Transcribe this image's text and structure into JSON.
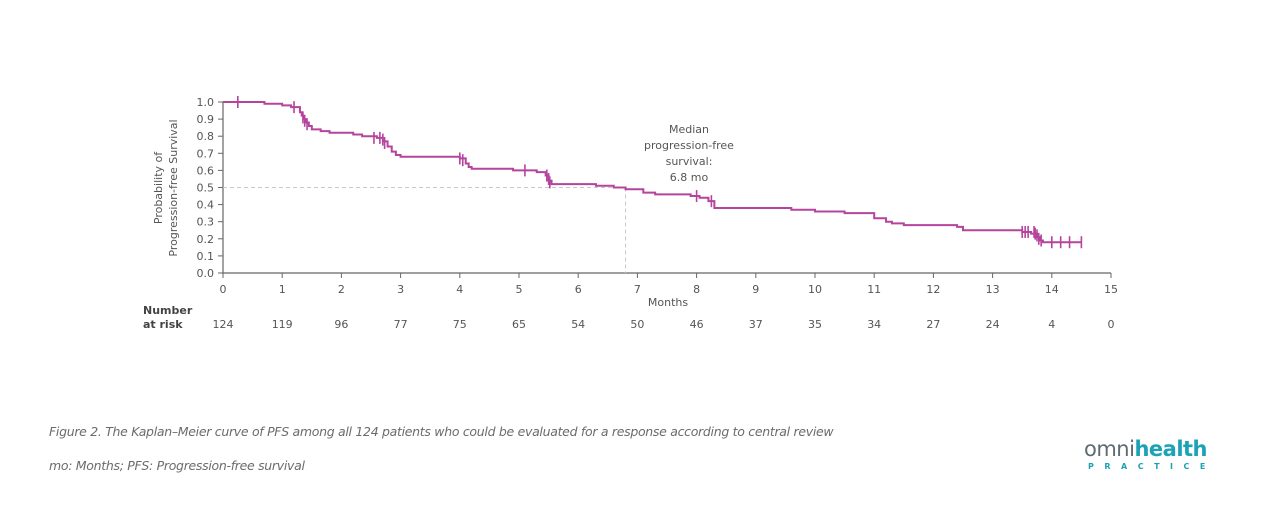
{
  "chart_data": {
    "type": "line",
    "subtype": "kaplan-meier-step",
    "title": "",
    "xlabel": "Months",
    "ylabel_lines": [
      "Probability of",
      "Progression-free Survival"
    ],
    "xlim": [
      0,
      15
    ],
    "ylim": [
      0,
      1.0
    ],
    "xticks": [
      0,
      1,
      2,
      3,
      4,
      5,
      6,
      7,
      8,
      9,
      10,
      11,
      12,
      13,
      14,
      15
    ],
    "xtick_labels": [
      "0",
      "1",
      "2",
      "3",
      "4",
      "5",
      "6",
      "7",
      "8",
      "9",
      "10",
      "11",
      "12",
      "13",
      "14",
      "15"
    ],
    "yticks": [
      0.0,
      0.1,
      0.2,
      0.3,
      0.4,
      0.5,
      0.6,
      0.7,
      0.8,
      0.9,
      1.0
    ],
    "ytick_labels": [
      "0.0",
      "0.1",
      "0.2",
      "0.3",
      "0.4",
      "0.5",
      "0.6",
      "0.7",
      "0.8",
      "0.9",
      "1.0"
    ],
    "grid": false,
    "series": [
      {
        "name": "PFS",
        "color": "#b5449c",
        "steps": [
          [
            0,
            1.0
          ],
          [
            0.7,
            0.99
          ],
          [
            1.0,
            0.98
          ],
          [
            1.15,
            0.97
          ],
          [
            1.3,
            0.94
          ],
          [
            1.33,
            0.92
          ],
          [
            1.36,
            0.9
          ],
          [
            1.4,
            0.88
          ],
          [
            1.45,
            0.86
          ],
          [
            1.5,
            0.84
          ],
          [
            1.65,
            0.83
          ],
          [
            1.8,
            0.82
          ],
          [
            2.2,
            0.81
          ],
          [
            2.35,
            0.8
          ],
          [
            2.6,
            0.79
          ],
          [
            2.7,
            0.77
          ],
          [
            2.78,
            0.74
          ],
          [
            2.85,
            0.71
          ],
          [
            2.92,
            0.69
          ],
          [
            3.0,
            0.68
          ],
          [
            4.0,
            0.67
          ],
          [
            4.1,
            0.64
          ],
          [
            4.15,
            0.62
          ],
          [
            4.2,
            0.61
          ],
          [
            4.9,
            0.6
          ],
          [
            5.3,
            0.59
          ],
          [
            5.45,
            0.57
          ],
          [
            5.5,
            0.54
          ],
          [
            5.55,
            0.52
          ],
          [
            6.3,
            0.51
          ],
          [
            6.6,
            0.5
          ],
          [
            6.8,
            0.49
          ],
          [
            7.1,
            0.47
          ],
          [
            7.3,
            0.46
          ],
          [
            7.9,
            0.45
          ],
          [
            8.05,
            0.44
          ],
          [
            8.2,
            0.42
          ],
          [
            8.3,
            0.38
          ],
          [
            9.6,
            0.37
          ],
          [
            10.0,
            0.36
          ],
          [
            10.5,
            0.35
          ],
          [
            11.0,
            0.32
          ],
          [
            11.2,
            0.3
          ],
          [
            11.3,
            0.29
          ],
          [
            11.5,
            0.28
          ],
          [
            12.4,
            0.27
          ],
          [
            12.5,
            0.25
          ],
          [
            13.5,
            0.24
          ],
          [
            13.65,
            0.23
          ],
          [
            13.75,
            0.21
          ],
          [
            13.8,
            0.19
          ],
          [
            13.85,
            0.18
          ],
          [
            14.5,
            0.18
          ]
        ],
        "censor_marks": [
          [
            0.25,
            1.0
          ],
          [
            1.2,
            0.97
          ],
          [
            1.35,
            0.91
          ],
          [
            1.38,
            0.89
          ],
          [
            1.42,
            0.87
          ],
          [
            2.55,
            0.79
          ],
          [
            2.65,
            0.79
          ],
          [
            2.7,
            0.78
          ],
          [
            2.73,
            0.76
          ],
          [
            4.0,
            0.67
          ],
          [
            4.05,
            0.66
          ],
          [
            5.1,
            0.6
          ],
          [
            5.47,
            0.57
          ],
          [
            5.5,
            0.55
          ],
          [
            5.52,
            0.53
          ],
          [
            8.0,
            0.45
          ],
          [
            8.25,
            0.42
          ],
          [
            13.5,
            0.24
          ],
          [
            13.55,
            0.24
          ],
          [
            13.6,
            0.24
          ],
          [
            13.7,
            0.24
          ],
          [
            13.72,
            0.23
          ],
          [
            13.75,
            0.22
          ],
          [
            13.78,
            0.2
          ],
          [
            13.82,
            0.19
          ],
          [
            14.0,
            0.18
          ],
          [
            14.15,
            0.18
          ],
          [
            14.3,
            0.18
          ],
          [
            14.5,
            0.18
          ]
        ]
      }
    ],
    "median": {
      "value_months": 6.8,
      "probability": 0.5,
      "annotation_lines": [
        "Median",
        "progression-free",
        "survival:",
        "6.8 mo"
      ]
    },
    "number_at_risk": {
      "label_lines": [
        "Number",
        "at risk"
      ],
      "times": [
        0,
        1,
        2,
        3,
        4,
        5,
        6,
        7,
        8,
        9,
        10,
        11,
        12,
        13,
        14,
        15
      ],
      "values": [
        "124",
        "119",
        "96",
        "77",
        "75",
        "65",
        "54",
        "50",
        "46",
        "37",
        "35",
        "34",
        "27",
        "24",
        "4",
        "0"
      ]
    }
  },
  "caption": {
    "line1": "Figure 2. The Kaplan–Meier curve of PFS among all 124 patients who could be evaluated for a response according to central review",
    "line2": "mo: Months; PFS: Progression-free survival"
  },
  "logo": {
    "part1": "omni",
    "part2": "health",
    "sub": "PRACTICE",
    "accent": "#1ba3b5"
  }
}
